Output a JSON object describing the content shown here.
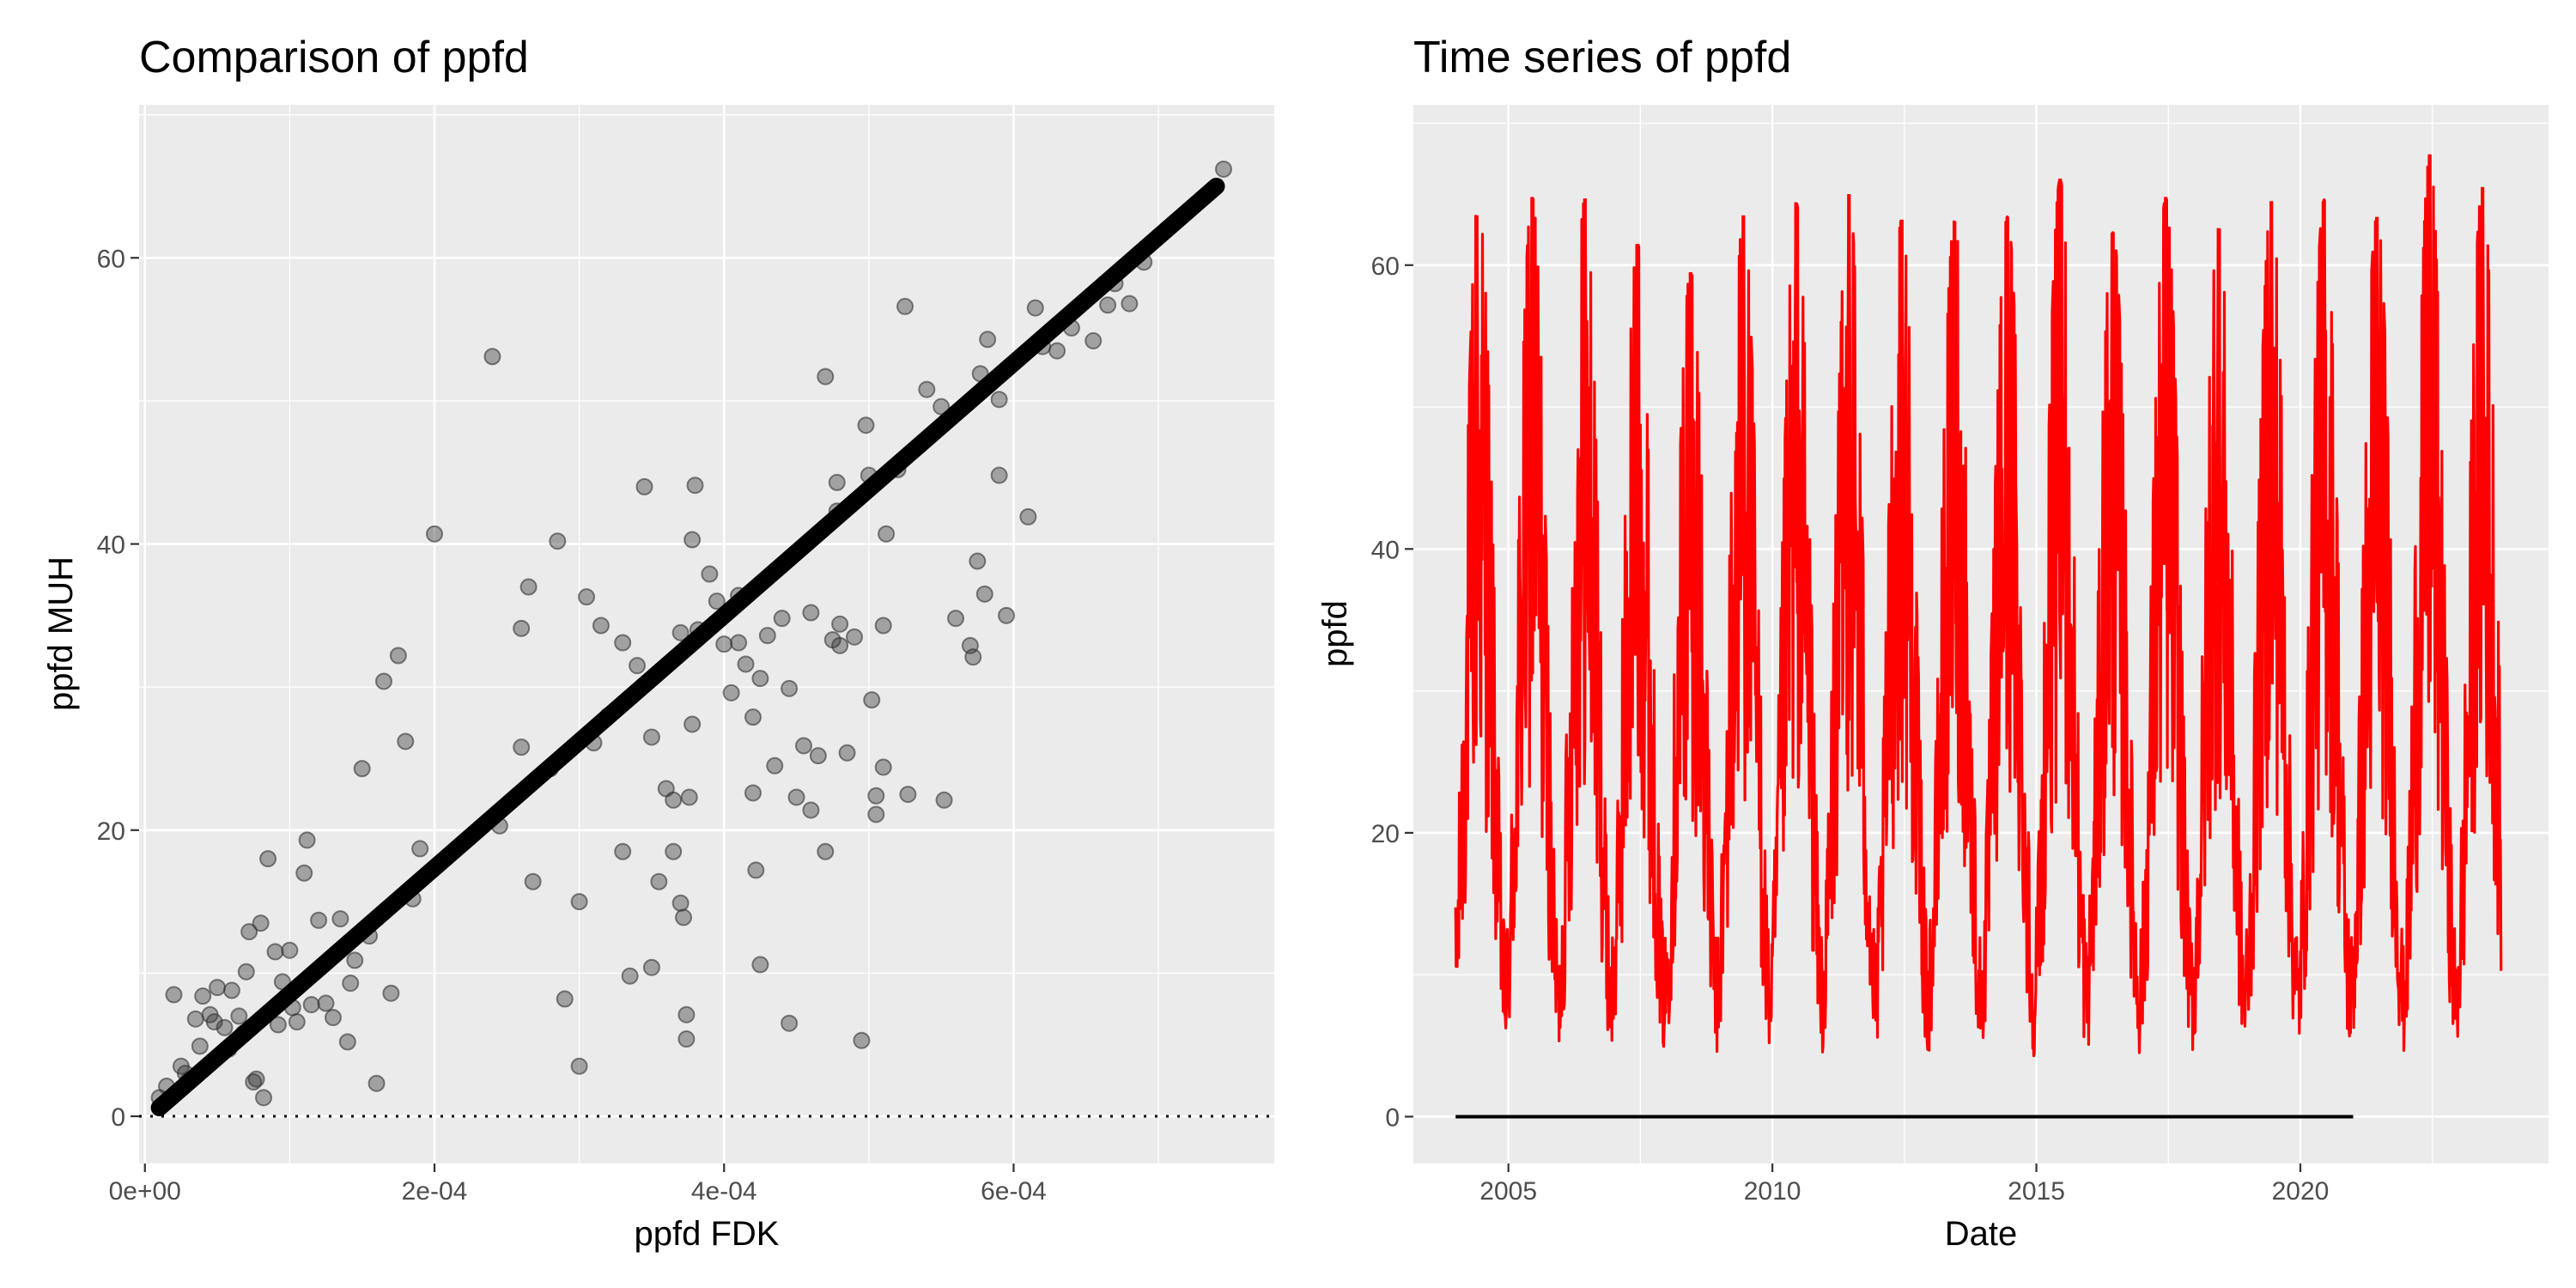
{
  "chart_data": [
    {
      "type": "scatter",
      "title": "Comparison of ppfd",
      "xlabel": "ppfd FDK",
      "ylabel": "ppfd MUH",
      "xlim": [
        -4e-06,
        0.00078
      ],
      "ylim": [
        -3.3,
        70.7
      ],
      "x_ticks": [
        0,
        0.0002,
        0.0004,
        0.0006
      ],
      "x_tick_labels": [
        "0e+00",
        "2e-04",
        "4e-04",
        "6e-04"
      ],
      "y_ticks": [
        0,
        20,
        40,
        60
      ],
      "y_tick_labels": [
        "0",
        "20",
        "40",
        "60"
      ],
      "grid": true,
      "point_color": "#333333",
      "line_color": "#000000",
      "fit_line": {
        "x": [
          1e-05,
          0.00074
        ],
        "y": [
          0.6,
          65.0
        ]
      },
      "reference_line": {
        "y": 0,
        "style": "dotted"
      },
      "points": [
        [
          1e-05,
          1.3
        ],
        [
          1.5e-05,
          2.1
        ],
        [
          2e-05,
          8.5
        ],
        [
          2.5e-05,
          3.5
        ],
        [
          3e-05,
          2.5
        ],
        [
          3.5e-05,
          6.8
        ],
        [
          4e-05,
          8.4
        ],
        [
          4.5e-05,
          7.1
        ],
        [
          5e-05,
          9.0
        ],
        [
          5.5e-05,
          6.2
        ],
        [
          6e-05,
          8.8
        ],
        [
          6.5e-05,
          7.0
        ],
        [
          7e-05,
          10.1
        ],
        [
          7.2e-05,
          12.9
        ],
        [
          7.5e-05,
          2.4
        ],
        [
          8e-05,
          13.5
        ],
        [
          8.5e-05,
          18.0
        ],
        [
          9e-05,
          11.5
        ],
        [
          9.5e-05,
          9.4
        ],
        [
          0.0001,
          11.6
        ],
        [
          0.000105,
          6.6
        ],
        [
          0.00011,
          17.0
        ],
        [
          0.000112,
          19.3
        ],
        [
          0.000115,
          7.8
        ],
        [
          0.00012,
          13.7
        ],
        [
          0.000125,
          7.9
        ],
        [
          0.00013,
          6.9
        ],
        [
          0.000135,
          13.8
        ],
        [
          0.00014,
          5.2
        ],
        [
          0.000145,
          10.9
        ],
        [
          0.00015,
          24.3
        ],
        [
          0.000155,
          12.6
        ],
        [
          0.00016,
          2.3
        ],
        [
          0.000165,
          30.4
        ],
        [
          0.00017,
          8.6
        ],
        [
          0.000175,
          32.2
        ],
        [
          0.00018,
          26.2
        ],
        [
          0.000185,
          15.2
        ],
        [
          0.00019,
          18.7
        ],
        [
          0.0002,
          40.7
        ],
        [
          7.7e-05,
          2.6
        ],
        [
          8.2e-05,
          1.3
        ],
        [
          6.8e-05,
          5.8
        ],
        [
          5.8e-05,
          4.7
        ],
        [
          4.8e-05,
          6.6
        ],
        [
          3.8e-05,
          4.9
        ],
        [
          2.8e-05,
          3.0
        ],
        [
          9.2e-05,
          6.4
        ],
        [
          0.000102,
          7.6
        ],
        [
          0.000142,
          9.3
        ],
        [
          0.00024,
          53.1
        ],
        [
          0.000245,
          20.3
        ],
        [
          0.00026,
          34.1
        ],
        [
          0.00026,
          25.8
        ],
        [
          0.000265,
          37.0
        ],
        [
          0.000268,
          16.4
        ],
        [
          0.00028,
          24.3
        ],
        [
          0.000285,
          40.2
        ],
        [
          0.00029,
          8.2
        ],
        [
          0.0003,
          15.0
        ],
        [
          0.0003,
          3.5
        ],
        [
          0.000305,
          36.3
        ],
        [
          0.00031,
          26.1
        ],
        [
          0.000315,
          34.3
        ],
        [
          0.00032,
          28.0
        ],
        [
          0.00033,
          33.1
        ],
        [
          0.00033,
          18.5
        ],
        [
          0.000335,
          9.8
        ],
        [
          0.00034,
          31.5
        ],
        [
          0.000345,
          44.0
        ],
        [
          0.00035,
          10.4
        ],
        [
          0.00035,
          26.5
        ],
        [
          0.000355,
          16.4
        ],
        [
          0.00036,
          22.9
        ],
        [
          0.000365,
          22.1
        ],
        [
          0.000365,
          18.5
        ],
        [
          0.00037,
          33.8
        ],
        [
          0.00037,
          14.9
        ],
        [
          0.000372,
          13.9
        ],
        [
          0.000374,
          7.1
        ],
        [
          0.000374,
          5.4
        ],
        [
          0.000376,
          22.3
        ],
        [
          0.000378,
          27.4
        ],
        [
          0.00038,
          44.1
        ],
        [
          0.000378,
          40.3
        ],
        [
          0.000382,
          34.0
        ],
        [
          0.00039,
          37.9
        ],
        [
          0.000395,
          36.0
        ],
        [
          0.0004,
          33.0
        ],
        [
          0.000405,
          29.6
        ],
        [
          0.00041,
          36.4
        ],
        [
          0.00041,
          33.1
        ],
        [
          0.000415,
          31.6
        ],
        [
          0.00042,
          22.6
        ],
        [
          0.00042,
          27.9
        ],
        [
          0.000422,
          17.2
        ],
        [
          0.000425,
          10.6
        ],
        [
          0.000425,
          30.6
        ],
        [
          0.00043,
          33.6
        ],
        [
          0.000435,
          24.5
        ],
        [
          0.00044,
          34.8
        ],
        [
          0.000445,
          6.5
        ],
        [
          0.000445,
          29.9
        ],
        [
          0.00045,
          22.3
        ],
        [
          0.000455,
          25.9
        ],
        [
          0.00046,
          35.2
        ],
        [
          0.00046,
          21.4
        ],
        [
          0.000465,
          25.2
        ],
        [
          0.00047,
          51.7
        ],
        [
          0.00047,
          18.5
        ],
        [
          0.000475,
          33.3
        ],
        [
          0.000478,
          44.3
        ],
        [
          0.000478,
          42.3
        ],
        [
          0.00048,
          32.9
        ],
        [
          0.00048,
          34.4
        ],
        [
          0.000485,
          25.4
        ],
        [
          0.00049,
          33.5
        ],
        [
          0.000495,
          5.3
        ],
        [
          0.000498,
          48.3
        ],
        [
          0.0005,
          44.8
        ],
        [
          0.000502,
          29.1
        ],
        [
          0.000505,
          22.4
        ],
        [
          0.000505,
          21.1
        ],
        [
          0.00051,
          24.4
        ],
        [
          0.00051,
          34.3
        ],
        [
          0.000512,
          40.7
        ],
        [
          0.00052,
          45.2
        ],
        [
          0.000525,
          56.6
        ],
        [
          0.000527,
          22.5
        ],
        [
          0.000535,
          46.9
        ],
        [
          0.00054,
          50.8
        ],
        [
          0.00055,
          49.6
        ],
        [
          0.000552,
          22.1
        ],
        [
          0.00056,
          34.8
        ],
        [
          0.00057,
          32.9
        ],
        [
          0.000572,
          32.1
        ],
        [
          0.000575,
          38.8
        ],
        [
          0.000577,
          51.9
        ],
        [
          0.00058,
          36.5
        ],
        [
          0.000582,
          54.3
        ],
        [
          0.00059,
          44.8
        ],
        [
          0.00059,
          50.1
        ],
        [
          0.000595,
          35.0
        ],
        [
          0.00061,
          41.9
        ],
        [
          0.000615,
          56.5
        ],
        [
          0.00062,
          53.8
        ],
        [
          0.00063,
          53.5
        ],
        [
          0.00064,
          55.1
        ],
        [
          0.000655,
          54.2
        ],
        [
          0.000665,
          56.7
        ],
        [
          0.00067,
          58.2
        ],
        [
          0.00068,
          56.8
        ],
        [
          0.00069,
          59.7
        ],
        [
          0.000745,
          66.2
        ]
      ]
    },
    {
      "type": "line",
      "title": "Time series of ppfd",
      "xlabel": "Date",
      "ylabel": "ppfd",
      "xlim": [
        2003.2,
        2024.7
      ],
      "ylim": [
        -3.3,
        71.3
      ],
      "x_ticks": [
        2005,
        2010,
        2015,
        2020
      ],
      "x_tick_labels": [
        "2005",
        "2010",
        "2015",
        "2020"
      ],
      "y_ticks": [
        0,
        20,
        40,
        60
      ],
      "y_tick_labels": [
        "0",
        "20",
        "40",
        "60"
      ],
      "grid": true,
      "line_color": "#ff0000",
      "baseline": {
        "x": [
          2004.0,
          2021.0
        ],
        "y": 0,
        "color": "#000000"
      },
      "series": {
        "x_start": 2004.0,
        "x_end": 2023.8,
        "yearly_peaks": [
          [
            2004.4,
            63.5
          ],
          [
            2005.45,
            64.8
          ],
          [
            2006.45,
            64.7
          ],
          [
            2007.45,
            61.5
          ],
          [
            2008.45,
            59.5
          ],
          [
            2009.45,
            63.5
          ],
          [
            2010.45,
            64.4
          ],
          [
            2011.45,
            65.0
          ],
          [
            2012.45,
            63.2
          ],
          [
            2013.45,
            63.1
          ],
          [
            2014.45,
            63.4
          ],
          [
            2015.45,
            66.1
          ],
          [
            2016.45,
            62.3
          ],
          [
            2017.45,
            64.8
          ],
          [
            2018.45,
            62.6
          ],
          [
            2019.45,
            64.5
          ],
          [
            2020.45,
            64.6
          ],
          [
            2021.45,
            63.4
          ],
          [
            2022.45,
            67.8
          ],
          [
            2023.45,
            65.5
          ]
        ],
        "yearly_troughs": [
          [
            2004.0,
            1.0
          ],
          [
            2004.95,
            4.0
          ],
          [
            2005.95,
            2.5
          ],
          [
            2006.95,
            1.2
          ],
          [
            2007.95,
            3.0
          ],
          [
            2008.95,
            1.0
          ],
          [
            2009.95,
            0.8
          ],
          [
            2010.95,
            3.5
          ],
          [
            2011.95,
            1.5
          ],
          [
            2012.95,
            1.2
          ],
          [
            2013.95,
            2.0
          ],
          [
            2014.95,
            1.8
          ],
          [
            2015.95,
            2.2
          ],
          [
            2016.95,
            2.5
          ],
          [
            2017.95,
            1.5
          ],
          [
            2018.95,
            2.0
          ],
          [
            2019.95,
            2.5
          ],
          [
            2020.95,
            3.2
          ],
          [
            2021.95,
            2.0
          ],
          [
            2022.95,
            2.5
          ],
          [
            2023.8,
            2.5
          ]
        ]
      }
    }
  ]
}
